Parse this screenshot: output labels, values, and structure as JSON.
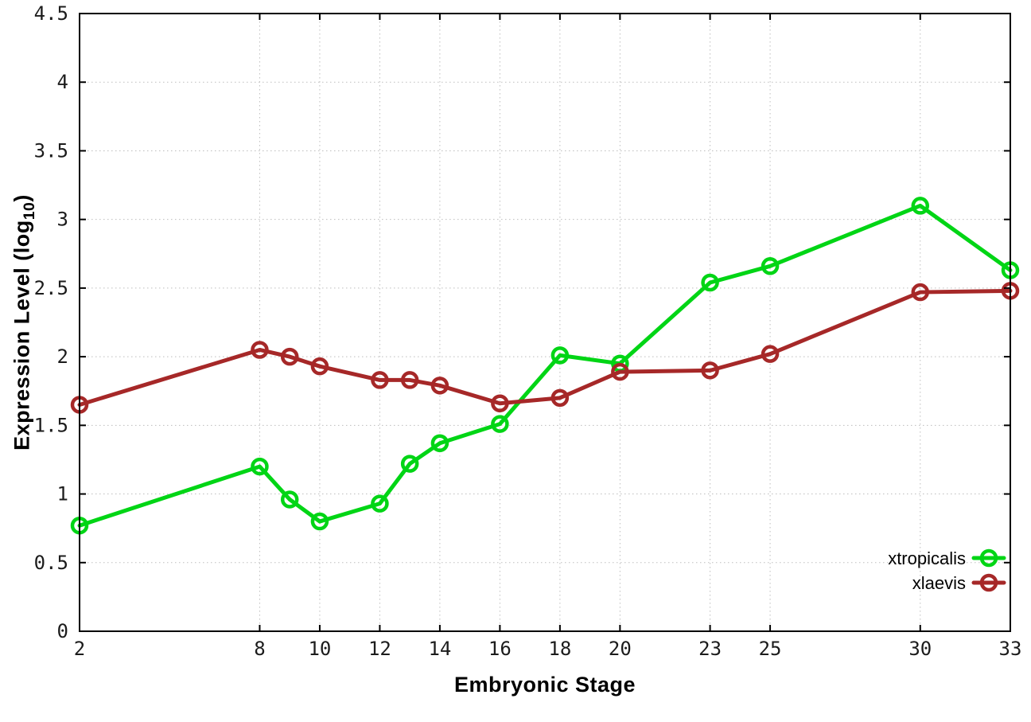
{
  "chart_data": {
    "type": "line",
    "title": "",
    "xlabel": "Embryonic Stage",
    "ylabel": {
      "text": "Expression Level (log",
      "sub": "10",
      "suffix": ")"
    },
    "x": [
      2,
      8,
      9,
      10,
      12,
      13,
      14,
      16,
      18,
      20,
      23,
      25,
      30,
      33
    ],
    "series": [
      {
        "name": "xtropicalis",
        "color": "#00d515",
        "values": [
          0.77,
          1.2,
          0.96,
          0.8,
          0.93,
          1.22,
          1.37,
          1.51,
          2.01,
          1.95,
          2.54,
          2.66,
          3.1,
          2.63
        ]
      },
      {
        "name": "xlaevis",
        "color": "#a62828",
        "values": [
          1.65,
          2.05,
          2.0,
          1.93,
          1.83,
          1.83,
          1.79,
          1.66,
          1.7,
          1.89,
          1.9,
          2.02,
          2.47,
          2.48
        ]
      }
    ],
    "xlim": [
      2,
      33
    ],
    "ylim": [
      0,
      4.5
    ],
    "xticks": [
      {
        "value": 2,
        "label": "2"
      },
      {
        "value": 8,
        "label": "8"
      },
      {
        "value": 10,
        "label": "10"
      },
      {
        "value": 12,
        "label": "12"
      },
      {
        "value": 14,
        "label": "14"
      },
      {
        "value": 16,
        "label": "16"
      },
      {
        "value": 18,
        "label": "18"
      },
      {
        "value": 20,
        "label": "20"
      },
      {
        "value": 23,
        "label": "23"
      },
      {
        "value": 25,
        "label": "25"
      },
      {
        "value": 30,
        "label": "30"
      },
      {
        "value": 33,
        "label": "33"
      }
    ],
    "yticks": [
      {
        "value": 0,
        "label": "0"
      },
      {
        "value": 0.5,
        "label": "0.5"
      },
      {
        "value": 1,
        "label": "1"
      },
      {
        "value": 1.5,
        "label": "1.5"
      },
      {
        "value": 2,
        "label": "2"
      },
      {
        "value": 2.5,
        "label": "2.5"
      },
      {
        "value": 3,
        "label": "3"
      },
      {
        "value": 3.5,
        "label": "3.5"
      },
      {
        "value": 4,
        "label": "4"
      },
      {
        "value": 4.5,
        "label": "4.5"
      }
    ],
    "grid": true,
    "grid_color": "#bdbdbd",
    "axis_color": "#000000",
    "background": "#ffffff",
    "legend_position": "bottom-right-inside"
  }
}
